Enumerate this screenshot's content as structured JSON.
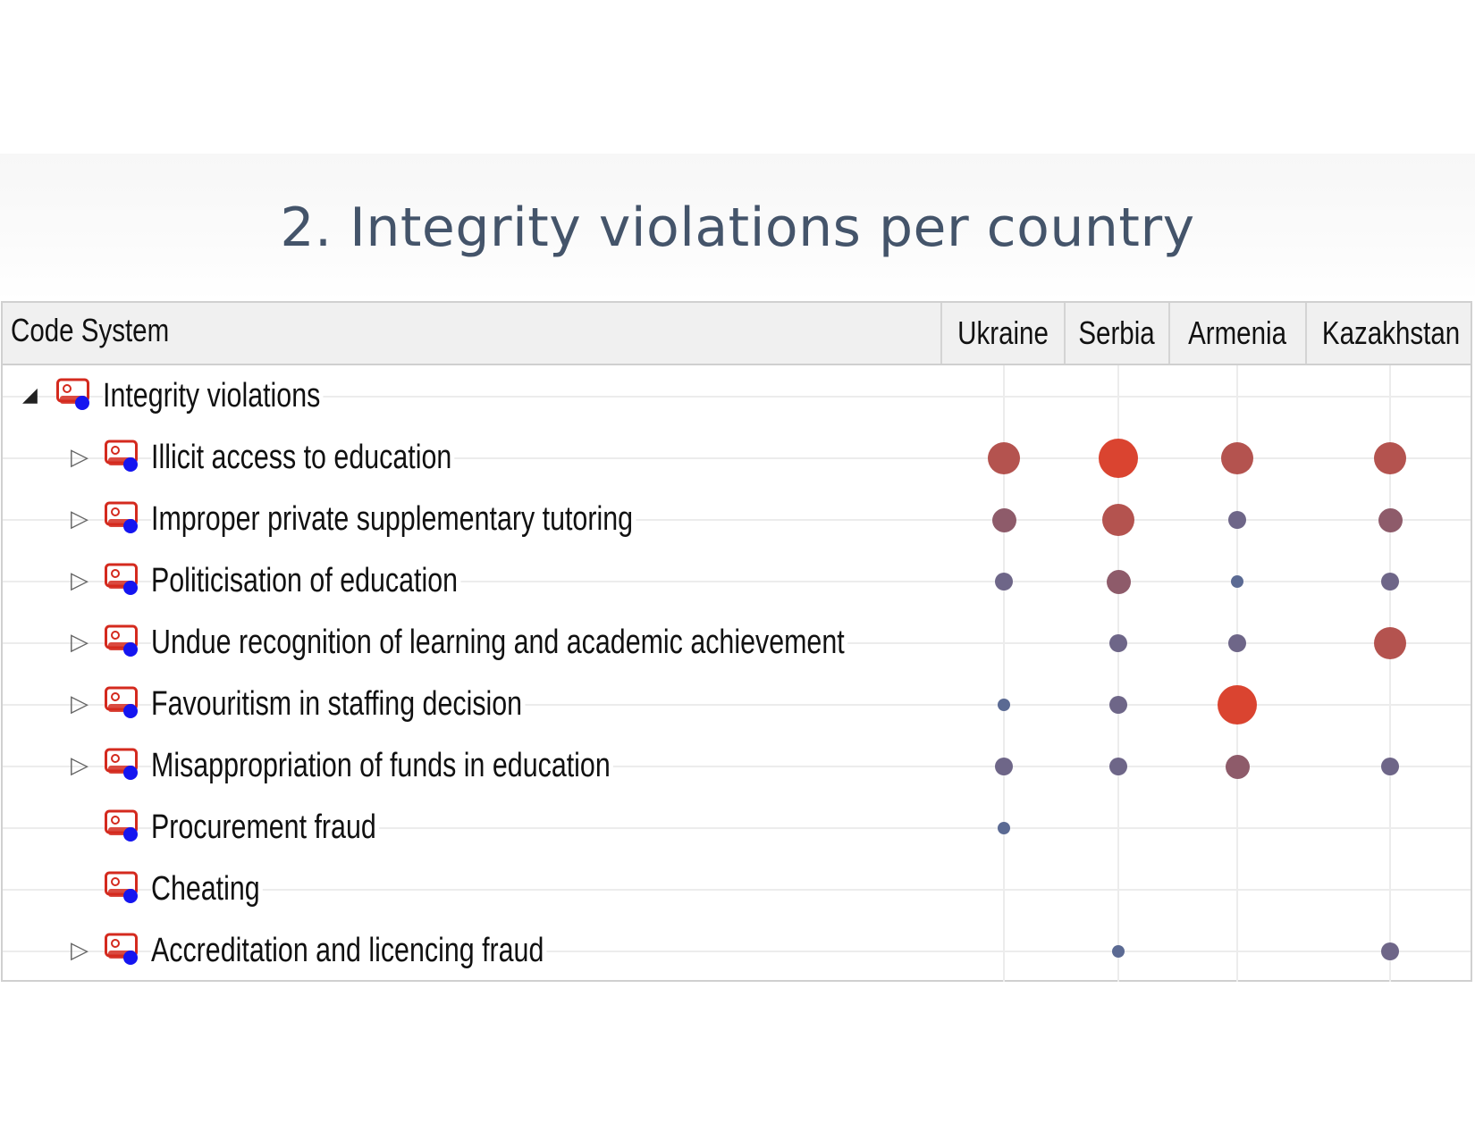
{
  "slide": {
    "title": "2. Integrity violations per country"
  },
  "table": {
    "header": {
      "code_system": "Code System",
      "countries": [
        "Ukraine",
        "Serbia",
        "Armenia",
        "Kazakhstan"
      ]
    },
    "root": {
      "label": "Integrity violations",
      "expanded": true,
      "icon": "code-icon"
    },
    "rows": [
      {
        "label": "Illicit access to education",
        "expandable": true,
        "cells": [
          4,
          5,
          4,
          4
        ]
      },
      {
        "label": "Improper private supplementary tutoring",
        "expandable": true,
        "cells": [
          3,
          4,
          2,
          3
        ]
      },
      {
        "label": "Politicisation of education",
        "expandable": true,
        "cells": [
          2,
          3,
          1,
          2
        ]
      },
      {
        "label": "Undue recognition of learning and academic achievement",
        "expandable": true,
        "cells": [
          0,
          2,
          2,
          4
        ]
      },
      {
        "label": "Favouritism in staffing decision",
        "expandable": true,
        "cells": [
          1,
          2,
          5,
          0
        ]
      },
      {
        "label": "Misappropriation of funds in education",
        "expandable": true,
        "cells": [
          2,
          2,
          3,
          2
        ]
      },
      {
        "label": "Procurement fraud",
        "expandable": false,
        "cells": [
          1,
          0,
          0,
          0
        ]
      },
      {
        "label": "Cheating",
        "expandable": false,
        "cells": [
          0,
          0,
          0,
          0
        ]
      },
      {
        "label": "Accreditation and licencing fraud",
        "expandable": true,
        "cells": [
          0,
          1,
          0,
          2
        ]
      }
    ]
  },
  "colors": {
    "icon_red": "#d42a1e",
    "icon_blue": "#1515f0",
    "dot_levels": [
      "",
      "#5b6a93",
      "#6e6688",
      "#8e5b6a",
      "#b4534f",
      "#da4430"
    ]
  }
}
